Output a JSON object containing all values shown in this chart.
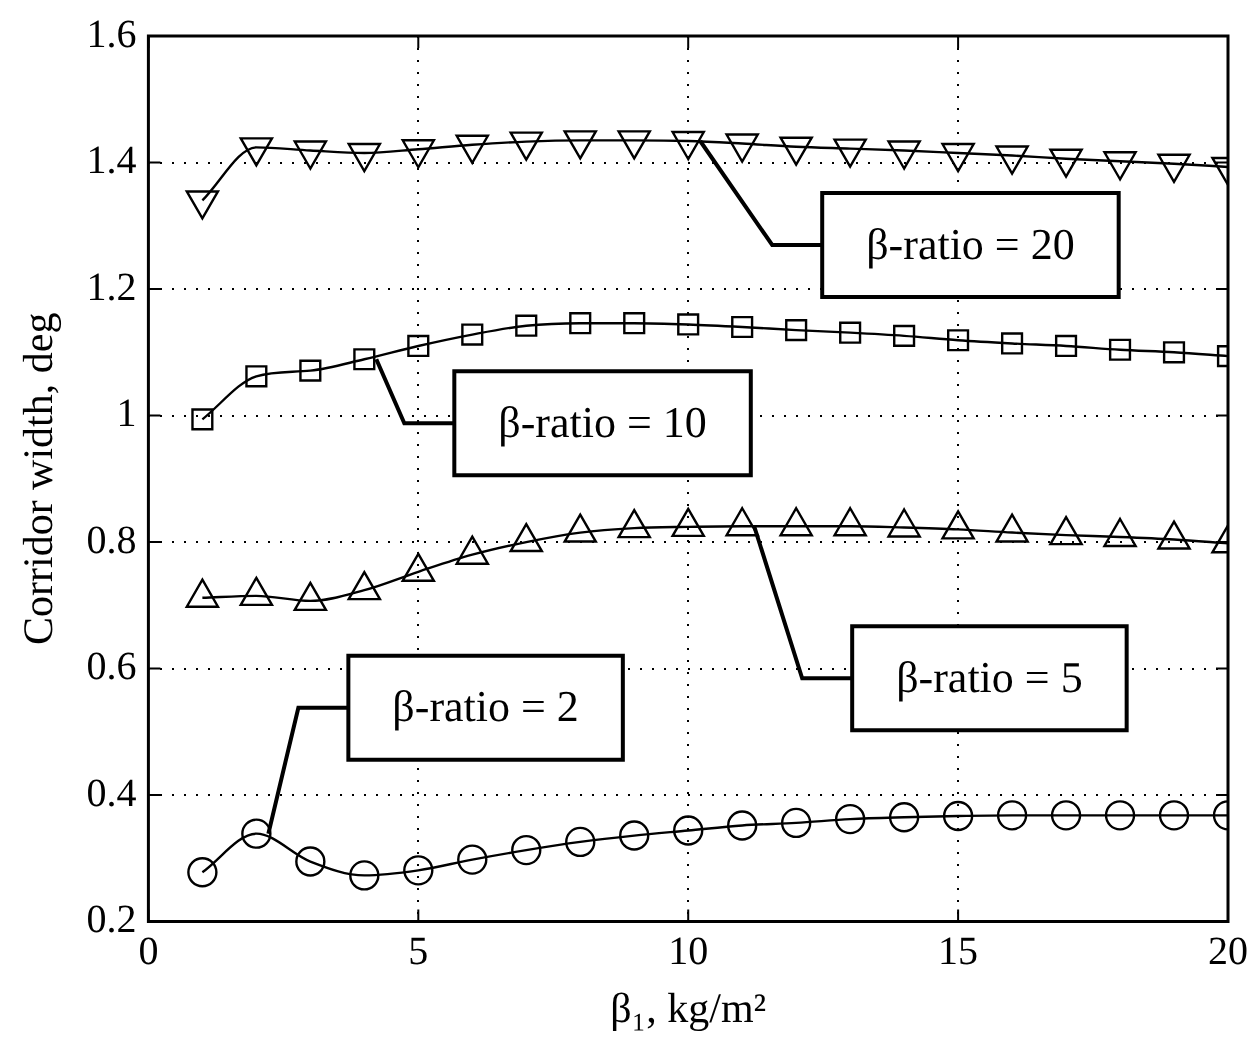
{
  "chart_data": {
    "type": "line",
    "xlabel": "β₁, kg/m²",
    "ylabel": "Corridor width, deg",
    "x": [
      1,
      2,
      3,
      4,
      5,
      6,
      7,
      8,
      9,
      10,
      11,
      12,
      13,
      14,
      15,
      16,
      17,
      18,
      19,
      20
    ],
    "xlim": [
      0,
      20
    ],
    "xticks": [
      0,
      5,
      10,
      15,
      20
    ],
    "ylim": [
      0.2,
      1.6
    ],
    "yticks": [
      0.2,
      0.4,
      0.6,
      0.8,
      1,
      1.2,
      1.4,
      1.6
    ],
    "grid": true,
    "line_style": "solid",
    "series": [
      {
        "name": "β-ratio = 20",
        "color": "#000000",
        "marker": "triangle-down",
        "values": [
          1.34,
          1.424,
          1.419,
          1.415,
          1.421,
          1.428,
          1.433,
          1.435,
          1.435,
          1.434,
          1.43,
          1.425,
          1.422,
          1.419,
          1.415,
          1.411,
          1.406,
          1.402,
          1.398,
          1.393
        ]
      },
      {
        "name": "β-ratio = 10",
        "color": "#000000",
        "marker": "square",
        "values": [
          0.994,
          1.062,
          1.071,
          1.089,
          1.11,
          1.128,
          1.142,
          1.146,
          1.146,
          1.144,
          1.14,
          1.135,
          1.131,
          1.126,
          1.119,
          1.114,
          1.11,
          1.104,
          1.1,
          1.094
        ]
      },
      {
        "name": "β-ratio = 5",
        "color": "#000000",
        "marker": "triangle",
        "values": [
          0.712,
          0.715,
          0.707,
          0.724,
          0.753,
          0.78,
          0.8,
          0.815,
          0.822,
          0.824,
          0.825,
          0.825,
          0.825,
          0.823,
          0.82,
          0.815,
          0.811,
          0.808,
          0.804,
          0.798
        ]
      },
      {
        "name": "β-ratio = 2",
        "color": "#000000",
        "marker": "circle",
        "values": [
          0.278,
          0.339,
          0.295,
          0.273,
          0.281,
          0.298,
          0.313,
          0.326,
          0.336,
          0.344,
          0.352,
          0.356,
          0.362,
          0.365,
          0.367,
          0.368,
          0.368,
          0.368,
          0.368,
          0.368
        ]
      }
    ]
  }
}
